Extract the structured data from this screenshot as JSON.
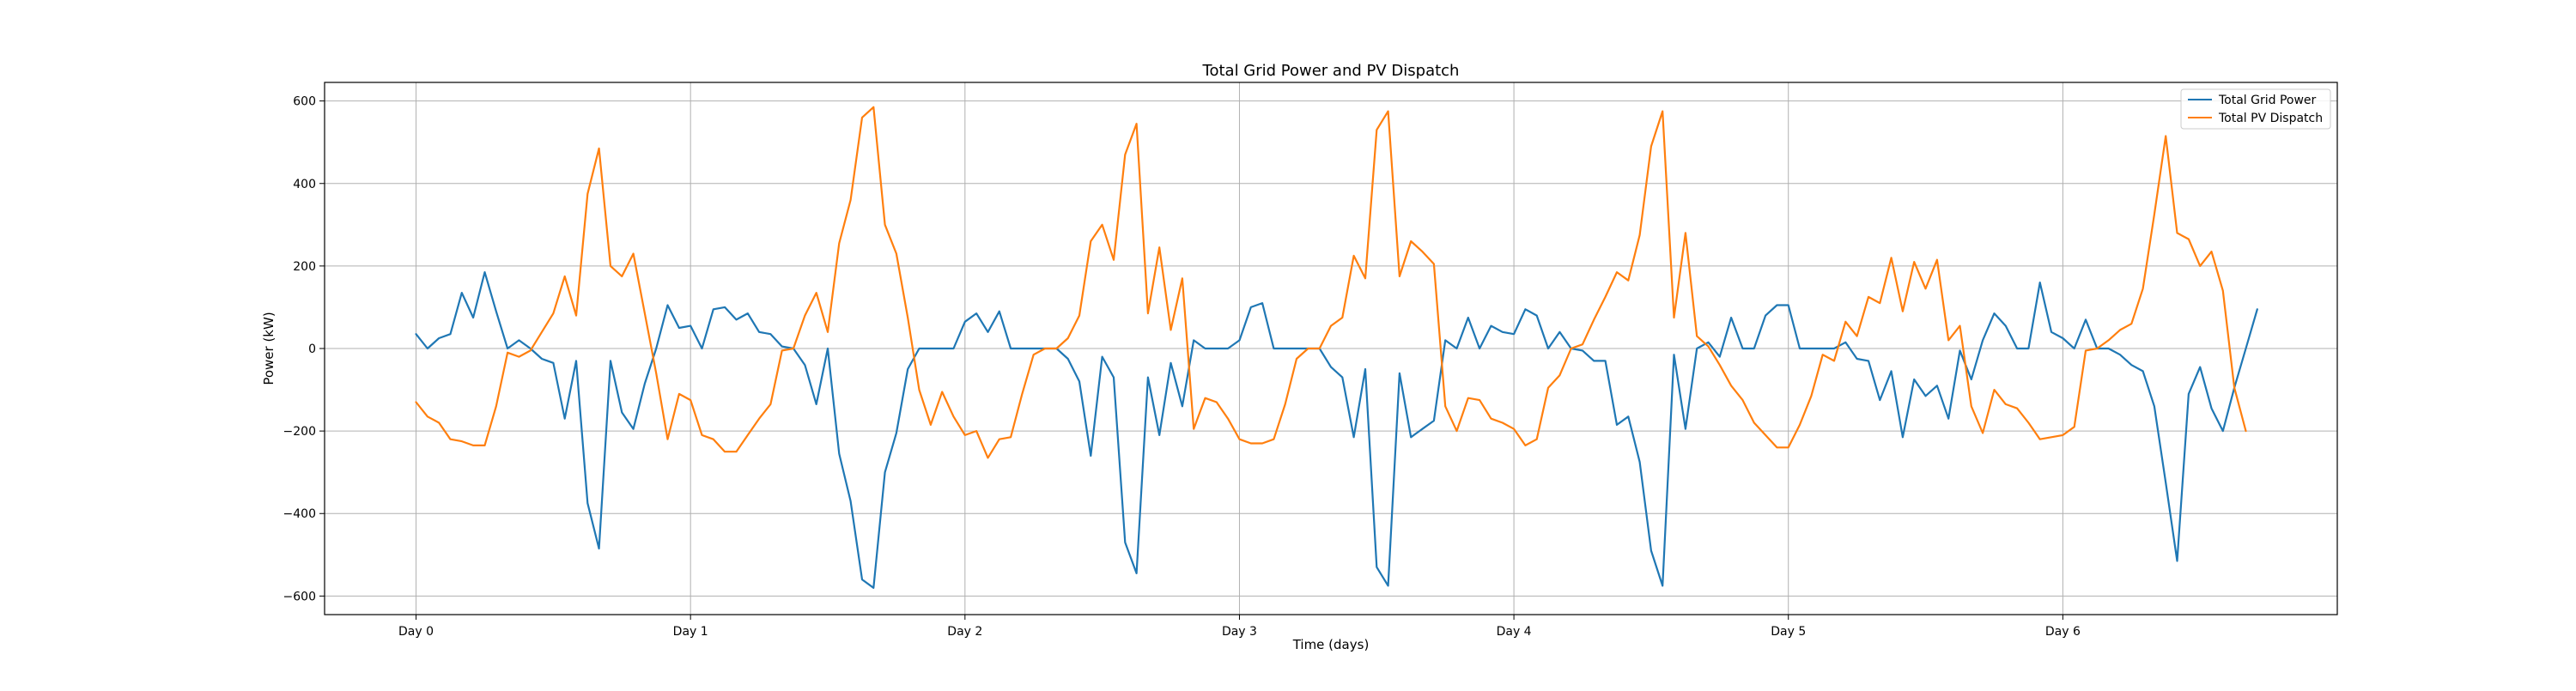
{
  "chart_data": {
    "type": "line",
    "title": "Total Grid Power and PV Dispatch",
    "xlabel": "Time (days)",
    "ylabel": "Power (kW)",
    "x_tick_labels": [
      "Day 0",
      "Day 1",
      "Day 2",
      "Day 3",
      "Day 4",
      "Day 5",
      "Day 6"
    ],
    "x_ticks": [
      0,
      24,
      48,
      72,
      96,
      120,
      144
    ],
    "y_ticks": [
      -600,
      -400,
      -200,
      0,
      200,
      400,
      600
    ],
    "xlim": [
      -8,
      168
    ],
    "ylim": [
      -645,
      645
    ],
    "grid": true,
    "legend_location": "upper right",
    "x_step_hours": 1,
    "series": [
      {
        "name": "Total Grid Power",
        "color": "#1f77b4",
        "values": [
          35,
          0,
          25,
          35,
          135,
          75,
          185,
          90,
          0,
          20,
          0,
          -25,
          -35,
          -170,
          -30,
          -375,
          -485,
          -30,
          -155,
          -195,
          -85,
          0,
          105,
          50,
          55,
          0,
          95,
          100,
          70,
          85,
          40,
          35,
          5,
          0,
          -40,
          -135,
          0,
          -255,
          -370,
          -560,
          -580,
          -300,
          -205,
          -50,
          0,
          0,
          0,
          0,
          65,
          85,
          40,
          90,
          0,
          0,
          0,
          0,
          0,
          -25,
          -80,
          -260,
          -20,
          -70,
          -470,
          -545,
          -70,
          -210,
          -35,
          -140,
          20,
          0,
          0,
          0,
          20,
          100,
          110,
          0,
          0,
          0,
          0,
          0,
          -45,
          -70,
          -215,
          -50,
          -530,
          -575,
          -60,
          -215,
          -195,
          -175,
          20,
          0,
          75,
          0,
          55,
          40,
          35,
          95,
          80,
          0,
          40,
          0,
          -5,
          -30,
          -30,
          -185,
          -165,
          -275,
          -490,
          -575,
          -15,
          -195,
          0,
          15,
          -20,
          75,
          0,
          0,
          80,
          105,
          105,
          0,
          0,
          0,
          0,
          15,
          -25,
          -30,
          -125,
          -55,
          -215,
          -75,
          -115,
          -90,
          -170,
          -5,
          -75,
          20,
          85,
          55,
          0,
          0,
          160,
          40,
          25,
          0,
          70,
          0,
          0,
          -15,
          -40,
          -55,
          -140,
          -325,
          -515,
          -110,
          -45,
          -145,
          -200,
          -95,
          0,
          95
        ]
      },
      {
        "name": "Total PV Dispatch",
        "color": "#ff7f0e",
        "values": [
          -130,
          -165,
          -180,
          -220,
          -225,
          -235,
          -235,
          -140,
          -10,
          -20,
          -5,
          40,
          85,
          175,
          80,
          375,
          485,
          200,
          175,
          230,
          85,
          -60,
          -220,
          -110,
          -125,
          -210,
          -220,
          -250,
          -250,
          -210,
          -170,
          -135,
          -5,
          0,
          80,
          135,
          40,
          255,
          360,
          560,
          585,
          300,
          230,
          75,
          -100,
          -185,
          -105,
          -165,
          -210,
          -200,
          -265,
          -220,
          -215,
          -110,
          -15,
          0,
          0,
          25,
          80,
          260,
          300,
          215,
          470,
          545,
          85,
          245,
          45,
          170,
          -195,
          -120,
          -130,
          -170,
          -220,
          -230,
          -230,
          -220,
          -135,
          -25,
          0,
          0,
          55,
          75,
          225,
          170,
          530,
          575,
          175,
          260,
          235,
          205,
          -140,
          -200,
          -120,
          -125,
          -170,
          -180,
          -195,
          -235,
          -220,
          -95,
          -65,
          0,
          10,
          70,
          125,
          185,
          165,
          275,
          490,
          575,
          75,
          280,
          30,
          5,
          -40,
          -90,
          -125,
          -180,
          -210,
          -240,
          -240,
          -185,
          -115,
          -15,
          -30,
          65,
          30,
          125,
          110,
          220,
          90,
          210,
          145,
          215,
          20,
          55,
          -140,
          -205,
          -100,
          -135,
          -145,
          -180,
          -220,
          -215,
          -210,
          -190,
          -5,
          0,
          20,
          45,
          60,
          145,
          325,
          515,
          280,
          265,
          200,
          235,
          140,
          -95,
          -200
        ]
      }
    ]
  }
}
